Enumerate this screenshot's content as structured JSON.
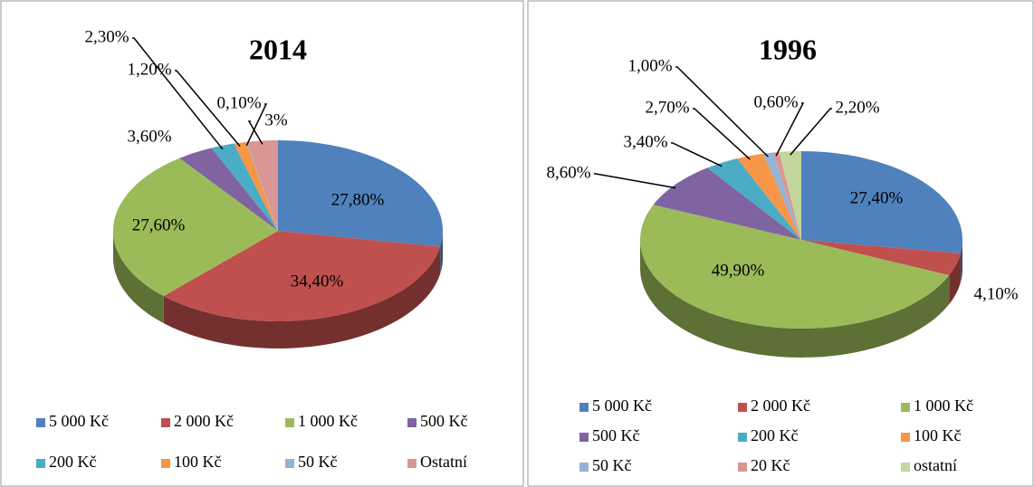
{
  "chart_data": [
    {
      "type": "pie3d",
      "title": "2014",
      "categories": [
        "5 000 Kč",
        "2 000 Kč",
        "1 000 Kč",
        "500 Kč",
        "200 Kč",
        "100 Kč",
        "50 Kč",
        "Ostatní"
      ],
      "values": [
        27.8,
        34.4,
        27.6,
        3.6,
        2.3,
        1.2,
        0.1,
        3
      ],
      "value_labels": [
        "27,80%",
        "34,40%",
        "27,60%",
        "3,60%",
        "2,30%",
        "1,20%",
        "0,10%",
        "3%"
      ],
      "colors": [
        "#4f81bd",
        "#c0504d",
        "#9bbb59",
        "#8064a2",
        "#4bacc6",
        "#f79646",
        "#95b3d7",
        "#d99694"
      ],
      "legend": "bottom"
    },
    {
      "type": "pie3d",
      "title": "1996",
      "categories": [
        "5 000 Kč",
        "2 000 Kč",
        "1 000 Kč",
        "500 Kč",
        "200 Kč",
        "100 Kč",
        "50 Kč",
        "20 Kč",
        "ostatní"
      ],
      "values": [
        27.4,
        4.1,
        49.9,
        8.6,
        3.4,
        2.7,
        1.0,
        0.6,
        2.2
      ],
      "value_labels": [
        "27,40%",
        "4,10%",
        "49,90%",
        "8,60%",
        "3,40%",
        "2,70%",
        "1,00%",
        "0,60%",
        "2,20%"
      ],
      "colors": [
        "#4f81bd",
        "#c0504d",
        "#9bbb59",
        "#8064a2",
        "#4bacc6",
        "#f79646",
        "#95b3d7",
        "#d99694",
        "#c3d69b"
      ],
      "legend": "bottom"
    }
  ]
}
